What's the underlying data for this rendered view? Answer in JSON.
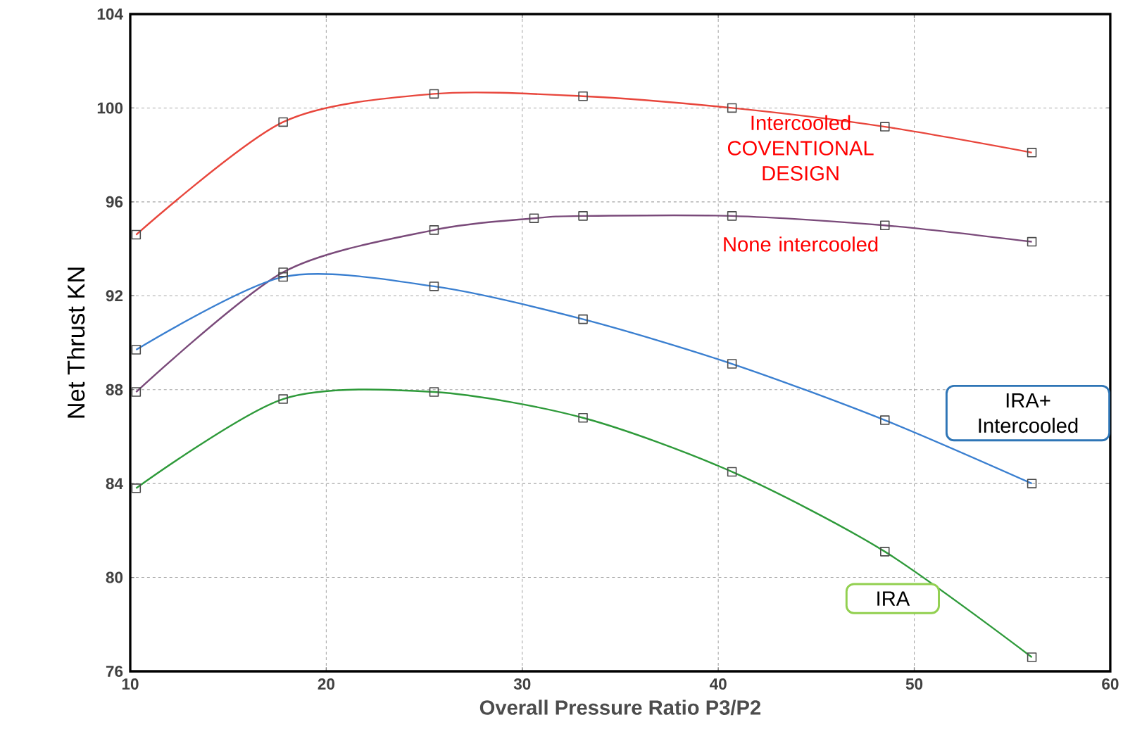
{
  "chart_data": {
    "type": "line",
    "xlabel": "Overall Pressure Ratio P3/P2",
    "ylabel": "Net Thrust KN",
    "xlim": [
      10,
      60
    ],
    "xticks": [
      10,
      20,
      30,
      40,
      50,
      60
    ],
    "ylim": [
      76,
      104
    ],
    "yticks": [
      76,
      80,
      84,
      88,
      92,
      96,
      100,
      104
    ],
    "grid": true,
    "marker": "square",
    "line_style": "solid",
    "series": [
      {
        "name": "Intercooled COVENTIONAL DESIGN",
        "color": "#e8463c",
        "x": [
          10.3,
          17.8,
          25.5,
          33.1,
          40.7,
          48.5,
          56.0
        ],
        "values": [
          94.6,
          99.4,
          100.6,
          100.5,
          100.0,
          99.2,
          98.1
        ]
      },
      {
        "name": "None intercooled",
        "color": "#7a4a7a",
        "x": [
          10.3,
          17.8,
          25.5,
          30.6,
          33.1,
          40.7,
          48.5,
          56.0
        ],
        "values": [
          87.9,
          93.0,
          94.8,
          95.3,
          95.4,
          95.4,
          95.0,
          94.3
        ]
      },
      {
        "name": "IRA+ Intercooled",
        "color": "#3a7fd0",
        "x": [
          10.3,
          17.8,
          25.5,
          33.1,
          40.7,
          48.5,
          56.0
        ],
        "values": [
          89.7,
          92.8,
          92.4,
          91.0,
          89.1,
          86.7,
          84.0
        ]
      },
      {
        "name": "IRA",
        "color": "#2e9a3a",
        "x": [
          10.3,
          17.8,
          25.5,
          33.1,
          40.7,
          48.5,
          56.0
        ],
        "values": [
          83.8,
          87.6,
          87.9,
          86.8,
          84.5,
          81.1,
          76.6
        ]
      }
    ]
  }
}
